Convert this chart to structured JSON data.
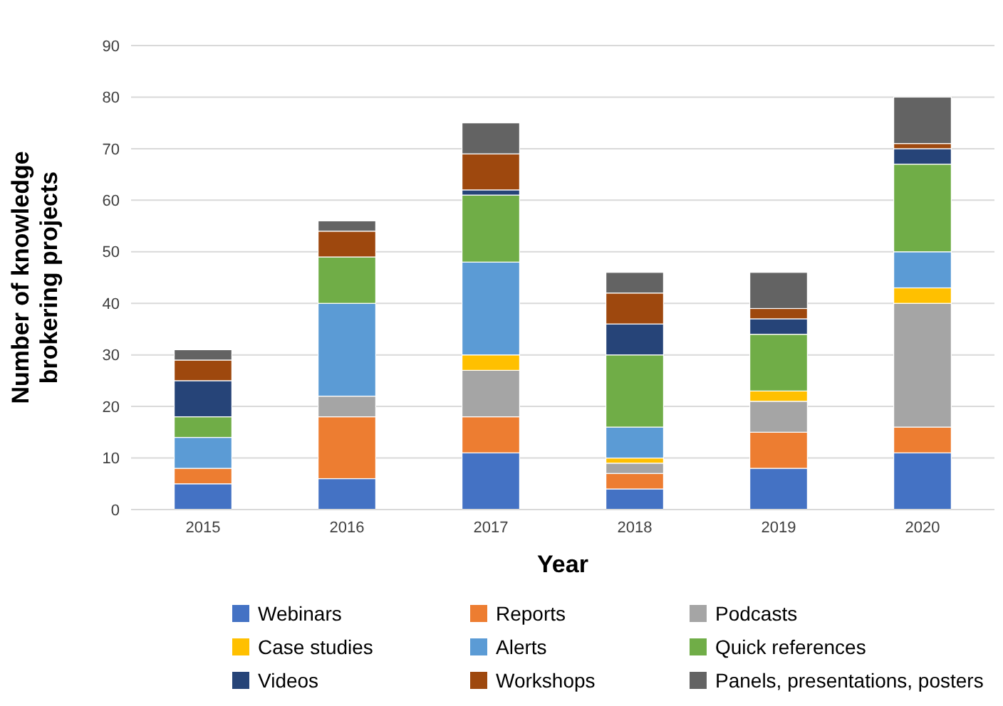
{
  "chart_data": {
    "type": "bar",
    "stacked": true,
    "xlabel": "Year",
    "ylabel": "Number of knowledge brokering projects",
    "categories": [
      "2015",
      "2016",
      "2017",
      "2018",
      "2019",
      "2020"
    ],
    "ylim": [
      0,
      90
    ],
    "yticks": [
      0,
      10,
      20,
      30,
      40,
      50,
      60,
      70,
      80,
      90
    ],
    "grid": "y",
    "legend": "bottom",
    "series": [
      {
        "name": "Webinars",
        "color": "#4472c4",
        "values": [
          5,
          6,
          11,
          4,
          8,
          11
        ]
      },
      {
        "name": "Reports",
        "color": "#ed7d31",
        "values": [
          3,
          12,
          7,
          3,
          7,
          5
        ]
      },
      {
        "name": "Podcasts",
        "color": "#a5a5a5",
        "values": [
          0,
          4,
          9,
          2,
          6,
          24
        ]
      },
      {
        "name": "Case studies",
        "color": "#ffc000",
        "values": [
          0,
          0,
          3,
          1,
          2,
          3
        ]
      },
      {
        "name": "Alerts",
        "color": "#5b9bd5",
        "values": [
          6,
          18,
          18,
          6,
          0,
          7
        ]
      },
      {
        "name": "Quick references",
        "color": "#70ad47",
        "values": [
          4,
          9,
          13,
          14,
          11,
          17
        ]
      },
      {
        "name": "Videos",
        "color": "#264478",
        "values": [
          7,
          0,
          1,
          6,
          3,
          3
        ]
      },
      {
        "name": "Workshops",
        "color": "#9e480e",
        "values": [
          4,
          5,
          7,
          6,
          2,
          1
        ]
      },
      {
        "name": "Panels, presentations, posters",
        "color": "#636363",
        "values": [
          2,
          2,
          6,
          4,
          7,
          9
        ]
      }
    ]
  }
}
